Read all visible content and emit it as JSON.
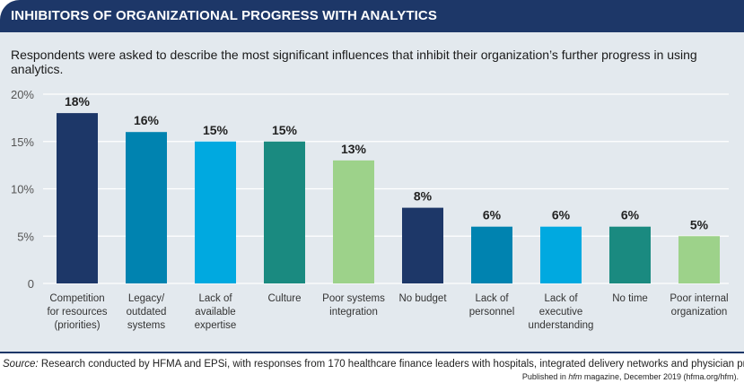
{
  "header": {
    "title": "INHIBITORS OF ORGANIZATIONAL PROGRESS WITH ANALYTICS"
  },
  "subtitle": "Respondents were asked to  describe the most significant influences that inhibit their organization’s further progress in using analytics.",
  "footer": {
    "source_label": "Source:",
    "source_text": " Research conducted by HFMA and EPSi, with responses from 170 healthcare finance leaders with hospitals, integrated delivery networks and physician practices.",
    "published_prefix": "Published in ",
    "published_mag": "hfm",
    "published_suffix": " magazine, December 2019 (hfma.org/hfm)."
  },
  "chart_data": {
    "type": "bar",
    "categories": [
      [
        "Competition",
        "for resources",
        "(priorities)"
      ],
      [
        "Legacy/",
        "outdated",
        "systems"
      ],
      [
        "Lack of",
        "available",
        "expertise"
      ],
      [
        "Culture"
      ],
      [
        "Poor systems",
        "integration"
      ],
      [
        "No budget"
      ],
      [
        "Lack of",
        "personnel"
      ],
      [
        "Lack of",
        "executive",
        "understanding"
      ],
      [
        "No time"
      ],
      [
        "Poor internal",
        "organization"
      ]
    ],
    "values": [
      18,
      16,
      15,
      15,
      13,
      8,
      6,
      6,
      6,
      5
    ],
    "data_labels": [
      "18%",
      "16%",
      "15%",
      "15%",
      "13%",
      "8%",
      "6%",
      "6%",
      "6%",
      "5%"
    ],
    "yticks": [
      0,
      5,
      10,
      15,
      20
    ],
    "ytick_labels": [
      "0",
      "5%",
      "10%",
      "15%",
      "20%"
    ],
    "ylim": [
      0,
      20
    ],
    "grid": true,
    "colors": [
      "#1d3768",
      "#0083b0",
      "#00a9e0",
      "#1a8a80",
      "#9dd28a",
      "#1d3768",
      "#0083b0",
      "#00a9e0",
      "#1a8a80",
      "#9dd28a"
    ],
    "title": "",
    "xlabel": "",
    "ylabel": ""
  }
}
